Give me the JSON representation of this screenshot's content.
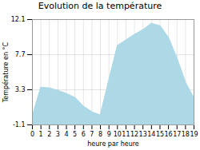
{
  "chart_data": {
    "type": "area",
    "title": "Evolution de la température",
    "xlabel": "heure par heure",
    "ylabel": "Température en °C",
    "x": [
      0,
      1,
      2,
      3,
      4,
      5,
      6,
      7,
      8,
      9,
      10,
      11,
      12,
      13,
      14,
      15,
      16,
      17,
      18,
      19
    ],
    "values": [
      0.0,
      3.6,
      3.5,
      3.2,
      2.8,
      2.3,
      1.2,
      0.5,
      0.1,
      4.5,
      8.8,
      9.5,
      10.2,
      10.8,
      11.6,
      11.3,
      9.8,
      7.2,
      4.2,
      2.2
    ],
    "color": "#add8e6",
    "xlim": [
      0,
      19
    ],
    "xticks": [
      0,
      1,
      2,
      3,
      4,
      5,
      6,
      7,
      8,
      9,
      10,
      11,
      12,
      13,
      14,
      15,
      16,
      17,
      18,
      19
    ],
    "ylim": [
      -1.1,
      12.1
    ],
    "yticks": [
      -1.1,
      3.3,
      7.7,
      12.1
    ],
    "grid": true
  }
}
